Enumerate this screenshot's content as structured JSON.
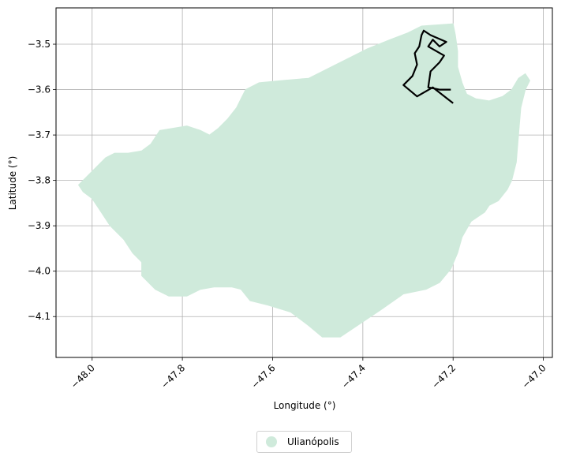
{
  "chart_data": {
    "type": "map",
    "xlabel": "Longitude (°)",
    "ylabel": "Latitude (°)",
    "xlim": [
      -48.08,
      -46.98
    ],
    "ylim": [
      -4.19,
      -3.42
    ],
    "xticks": [
      -48.0,
      -47.8,
      -47.6,
      -47.4,
      -47.2,
      -47.0
    ],
    "xtick_labels": [
      "−48.0",
      "−47.8",
      "−47.6",
      "−47.4",
      "−47.2",
      "−47.0"
    ],
    "yticks": [
      -3.5,
      -3.6,
      -3.7,
      -3.8,
      -3.9,
      -4.0,
      -4.1
    ],
    "ytick_labels": [
      "−3.5",
      "−3.6",
      "−3.7",
      "−3.8",
      "−3.9",
      "−4.0",
      "−4.1"
    ],
    "grid": true,
    "legend_position": "bottom-center",
    "region": {
      "name": "Ulianópolis",
      "fill_color": "#cfeadb",
      "boundary": [
        [
          -48.03,
          -3.81
        ],
        [
          -48.01,
          -3.79
        ],
        [
          -47.99,
          -3.77
        ],
        [
          -47.97,
          -3.75
        ],
        [
          -47.95,
          -3.74
        ],
        [
          -47.92,
          -3.74
        ],
        [
          -47.89,
          -3.735
        ],
        [
          -47.87,
          -3.72
        ],
        [
          -47.85,
          -3.69
        ],
        [
          -47.82,
          -3.685
        ],
        [
          -47.79,
          -3.68
        ],
        [
          -47.76,
          -3.69
        ],
        [
          -47.74,
          -3.7
        ],
        [
          -47.72,
          -3.685
        ],
        [
          -47.7,
          -3.665
        ],
        [
          -47.68,
          -3.64
        ],
        [
          -47.67,
          -3.62
        ],
        [
          -47.66,
          -3.6
        ],
        [
          -47.63,
          -3.585
        ],
        [
          -47.58,
          -3.58
        ],
        [
          -47.52,
          -3.575
        ],
        [
          -47.47,
          -3.55
        ],
        [
          -47.43,
          -3.53
        ],
        [
          -47.39,
          -3.51
        ],
        [
          -47.34,
          -3.49
        ],
        [
          -47.3,
          -3.475
        ],
        [
          -47.27,
          -3.46
        ],
        [
          -47.2,
          -3.455
        ],
        [
          -47.195,
          -3.48
        ],
        [
          -47.19,
          -3.515
        ],
        [
          -47.19,
          -3.55
        ],
        [
          -47.18,
          -3.585
        ],
        [
          -47.17,
          -3.61
        ],
        [
          -47.15,
          -3.62
        ],
        [
          -47.12,
          -3.625
        ],
        [
          -47.09,
          -3.615
        ],
        [
          -47.07,
          -3.6
        ],
        [
          -47.055,
          -3.575
        ],
        [
          -47.04,
          -3.565
        ],
        [
          -47.03,
          -3.58
        ],
        [
          -47.04,
          -3.6
        ],
        [
          -47.05,
          -3.64
        ],
        [
          -47.055,
          -3.7
        ],
        [
          -47.06,
          -3.76
        ],
        [
          -47.07,
          -3.8
        ],
        [
          -47.08,
          -3.82
        ],
        [
          -47.1,
          -3.845
        ],
        [
          -47.12,
          -3.855
        ],
        [
          -47.13,
          -3.87
        ],
        [
          -47.16,
          -3.89
        ],
        [
          -47.18,
          -3.925
        ],
        [
          -47.19,
          -3.96
        ],
        [
          -47.205,
          -3.995
        ],
        [
          -47.23,
          -4.025
        ],
        [
          -47.26,
          -4.04
        ],
        [
          -47.31,
          -4.05
        ],
        [
          -47.36,
          -4.085
        ],
        [
          -47.42,
          -4.125
        ],
        [
          -47.45,
          -4.145
        ],
        [
          -47.49,
          -4.145
        ],
        [
          -47.52,
          -4.12
        ],
        [
          -47.56,
          -4.09
        ],
        [
          -47.61,
          -4.075
        ],
        [
          -47.65,
          -4.065
        ],
        [
          -47.67,
          -4.04
        ],
        [
          -47.69,
          -4.035
        ],
        [
          -47.73,
          -4.035
        ],
        [
          -47.76,
          -4.04
        ],
        [
          -47.79,
          -4.055
        ],
        [
          -47.83,
          -4.055
        ],
        [
          -47.86,
          -4.04
        ],
        [
          -47.89,
          -4.01
        ],
        [
          -47.89,
          -3.98
        ],
        [
          -47.91,
          -3.96
        ],
        [
          -47.93,
          -3.93
        ],
        [
          -47.96,
          -3.9
        ],
        [
          -47.98,
          -3.87
        ],
        [
          -48.0,
          -3.84
        ],
        [
          -48.02,
          -3.825
        ]
      ]
    },
    "highlight_outline": {
      "color": "#000000",
      "path": [
        [
          -47.2,
          -3.63
        ],
        [
          -47.245,
          -3.595
        ],
        [
          -47.28,
          -3.615
        ],
        [
          -47.31,
          -3.59
        ],
        [
          -47.29,
          -3.57
        ],
        [
          -47.28,
          -3.545
        ],
        [
          -47.285,
          -3.52
        ],
        [
          -47.275,
          -3.505
        ],
        [
          -47.27,
          -3.48
        ],
        [
          -47.265,
          -3.47
        ],
        [
          -47.25,
          -3.48
        ],
        [
          -47.215,
          -3.495
        ],
        [
          -47.23,
          -3.505
        ],
        [
          -47.245,
          -3.49
        ],
        [
          -47.255,
          -3.505
        ],
        [
          -47.22,
          -3.525
        ],
        [
          -47.23,
          -3.54
        ],
        [
          -47.25,
          -3.56
        ],
        [
          -47.255,
          -3.595
        ],
        [
          -47.23,
          -3.6
        ],
        [
          -47.205,
          -3.6
        ]
      ]
    }
  }
}
